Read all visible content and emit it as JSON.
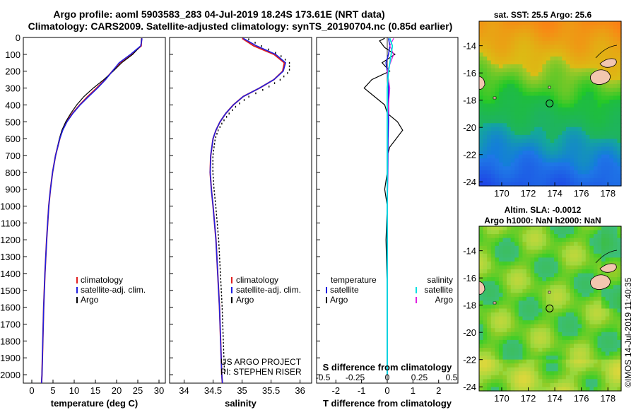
{
  "header": {
    "line1": "Argo profile: aoml 5903583_283 04-Jul-2019 18.24S 173.61E (NRT data)",
    "line2": "Climatology: CARS2009. Satellite-adjusted climatology: synTS_20190704.nc (0.85d earlier)"
  },
  "depth_ticks": [
    0,
    100,
    200,
    300,
    400,
    500,
    600,
    700,
    800,
    900,
    1000,
    1100,
    1200,
    1300,
    1400,
    1500,
    1600,
    1700,
    1800,
    1900,
    2000
  ],
  "colors": {
    "climatology": "#e02020",
    "satellite": "#2020e0",
    "argo": "#000000",
    "sat_salinity": "#00e0e0",
    "argo_salinity": "#e020e0"
  },
  "chart_data": [
    {
      "type": "line",
      "id": "temperature",
      "xlabel": "temperature (deg C)",
      "ylabel": "depth (m)",
      "xlim": [
        -2,
        31.5
      ],
      "ylim": [
        2050,
        0
      ],
      "x_ticks": [
        0,
        5,
        10,
        15,
        20,
        25,
        30
      ],
      "legend": [
        "climatology",
        "satellite-adj. clim.",
        "Argo"
      ],
      "series": [
        {
          "name": "climatology",
          "depth": [
            5,
            50,
            100,
            150,
            200,
            250,
            300,
            350,
            400,
            450,
            500,
            550,
            600,
            700,
            800,
            900,
            1000,
            1200,
            1400,
            1600,
            1800,
            2000,
            2050
          ],
          "values": [
            25.9,
            25.8,
            23.5,
            20.8,
            19.0,
            17.3,
            15.3,
            13.2,
            11.3,
            9.6,
            8.2,
            7.2,
            6.6,
            5.6,
            4.9,
            4.4,
            4.0,
            3.5,
            3.1,
            2.8,
            2.6,
            2.4,
            2.3
          ]
        },
        {
          "name": "satellite-adj. clim.",
          "depth": [
            5,
            50,
            100,
            150,
            200,
            250,
            300,
            350,
            400,
            450,
            500,
            550,
            600,
            700,
            800,
            900,
            1000,
            1200,
            1400,
            1600,
            1800,
            2000,
            2050
          ],
          "values": [
            26.0,
            25.7,
            23.3,
            20.6,
            19.0,
            17.4,
            15.5,
            13.4,
            11.4,
            9.7,
            8.3,
            7.3,
            6.6,
            5.6,
            4.9,
            4.4,
            4.0,
            3.5,
            3.1,
            2.8,
            2.6,
            2.4,
            2.3
          ]
        },
        {
          "name": "Argo",
          "depth": [
            5,
            50,
            100,
            150,
            200,
            250,
            300,
            350,
            400,
            450,
            500,
            550,
            600,
            700,
            800,
            900,
            1000,
            1200,
            1400,
            1600,
            1800,
            1990
          ],
          "values": [
            25.9,
            25.7,
            23.8,
            21.2,
            19.2,
            17.0,
            14.5,
            12.3,
            10.6,
            9.2,
            8.0,
            7.1,
            6.5,
            5.6,
            4.9,
            4.4,
            4.0,
            3.5,
            3.1,
            2.8,
            2.6,
            2.4
          ]
        }
      ]
    },
    {
      "type": "line",
      "id": "salinity",
      "xlabel": "salinity",
      "ylabel": "depth (m)",
      "xlim": [
        33.75,
        36.2
      ],
      "ylim": [
        2050,
        0
      ],
      "x_ticks": [
        34,
        34.5,
        35,
        35.5,
        36
      ],
      "legend": [
        "climatology",
        "satellite-adj. clim.",
        "Argo"
      ],
      "annotation": [
        "US ARGO PROJECT",
        "PI: STEPHEN RISER"
      ],
      "series": [
        {
          "name": "climatology",
          "depth": [
            5,
            50,
            100,
            150,
            200,
            250,
            300,
            350,
            400,
            450,
            500,
            550,
            600,
            700,
            800,
            900,
            1000,
            1200,
            1400,
            1600,
            1800,
            2000,
            2050
          ],
          "values": [
            35.0,
            35.2,
            35.55,
            35.73,
            35.7,
            35.55,
            35.3,
            35.02,
            34.85,
            34.72,
            34.62,
            34.55,
            34.5,
            34.46,
            34.45,
            34.47,
            34.5,
            34.55,
            34.58,
            34.61,
            34.63,
            34.65,
            34.66
          ]
        },
        {
          "name": "satellite-adj. clim.",
          "depth": [
            5,
            50,
            100,
            150,
            200,
            250,
            300,
            350,
            400,
            450,
            500,
            550,
            600,
            700,
            800,
            900,
            1000,
            1200,
            1400,
            1600,
            1800,
            2000,
            2050
          ],
          "values": [
            35.02,
            35.25,
            35.58,
            35.75,
            35.71,
            35.55,
            35.3,
            35.02,
            34.85,
            34.72,
            34.62,
            34.55,
            34.5,
            34.46,
            34.45,
            34.47,
            34.5,
            34.55,
            34.58,
            34.61,
            34.63,
            34.65,
            34.66
          ]
        },
        {
          "name": "Argo",
          "depth": [
            5,
            50,
            100,
            150,
            200,
            250,
            300,
            350,
            400,
            450,
            500,
            550,
            600,
            700,
            800,
            900,
            1000,
            1200,
            1400,
            1600,
            1800,
            1990
          ],
          "values": [
            35.05,
            35.3,
            35.6,
            35.78,
            35.78,
            35.62,
            35.38,
            35.08,
            34.88,
            34.74,
            34.63,
            34.55,
            34.5,
            34.46,
            34.46,
            34.48,
            34.51,
            34.56,
            34.59,
            34.62,
            34.64,
            34.66
          ]
        }
      ]
    },
    {
      "type": "line",
      "id": "difference",
      "xlabel": "T difference from climatology",
      "xlabel_top": "S difference from climatology",
      "ylabel": "depth (m)",
      "xlim": [
        -2.75,
        2.75
      ],
      "ylim": [
        2050,
        0
      ],
      "x_ticks": [
        -2,
        -1,
        0,
        1,
        2
      ],
      "s_ticks": [
        "-0.5",
        "-0.25",
        "0",
        "0.25",
        "0.5"
      ],
      "s_tick_values": [
        -0.5,
        -0.25,
        0,
        0.25,
        0.5
      ],
      "legend_temperature": [
        "temperature",
        "satellite",
        "Argo"
      ],
      "legend_salinity": [
        "salinity",
        "satellite",
        "Argo"
      ],
      "series": [
        {
          "name": "T satellite",
          "depth": [
            5,
            50,
            100,
            150,
            200,
            300,
            400,
            500,
            600,
            800,
            1000,
            1500,
            2000
          ],
          "values": [
            0.05,
            0.1,
            0.05,
            -0.05,
            0.0,
            0.05,
            0.05,
            0.05,
            0.03,
            0.02,
            0.0,
            0.0,
            0.0
          ]
        },
        {
          "name": "T Argo",
          "depth": [
            5,
            20,
            60,
            100,
            150,
            200,
            250,
            300,
            350,
            400,
            450,
            500,
            550,
            600,
            650,
            700,
            800,
            900,
            1000,
            1200,
            1500,
            2000
          ],
          "values": [
            -0.1,
            -0.3,
            -0.1,
            0.3,
            -0.2,
            0.1,
            -0.6,
            -0.9,
            -0.5,
            -0.1,
            0.0,
            0.4,
            0.6,
            0.35,
            0.1,
            0.0,
            0.0,
            -0.1,
            0.0,
            -0.05,
            0.0,
            0.0
          ]
        },
        {
          "name": "S satellite",
          "depth": [
            5,
            50,
            100,
            200,
            300,
            400,
            500,
            600,
            800,
            1000,
            1500,
            2000
          ],
          "values": [
            0.02,
            0.04,
            0.03,
            0.01,
            0.0,
            0.0,
            0.0,
            0.0,
            0.0,
            0.0,
            0.0,
            0.0
          ]
        },
        {
          "name": "S Argo",
          "depth": [
            5,
            50,
            100,
            200,
            300,
            400,
            500,
            600,
            800,
            1000,
            1500,
            2000
          ],
          "values": [
            0.05,
            0.02,
            0.05,
            0.0,
            0.02,
            0.01,
            0.0,
            0.0,
            0.0,
            0.0,
            0.0,
            0.0
          ]
        }
      ]
    },
    {
      "type": "heatmap",
      "id": "sst_map",
      "title": "sat. SST: 25.5 Argo: 25.6",
      "x_ticks": [
        170,
        172,
        174,
        176,
        178
      ],
      "y_ticks": [
        -14,
        -16,
        -18,
        -20,
        -22,
        -24
      ],
      "xlim": [
        168.3,
        179
      ],
      "ylim": [
        -24.3,
        -12.2
      ],
      "marker": [
        173.61,
        -18.24
      ]
    },
    {
      "type": "heatmap",
      "id": "sla_map",
      "title": "Altim. SLA: -0.0012",
      "subtitle": "Argo h1000: NaN h2000: NaN",
      "x_ticks": [
        170,
        172,
        174,
        176,
        178
      ],
      "y_ticks": [
        -14,
        -16,
        -18,
        -20,
        -22,
        -24
      ],
      "xlim": [
        168.3,
        179
      ],
      "ylim": [
        -24.3,
        -12.2
      ],
      "marker": [
        173.61,
        -18.24
      ]
    }
  ],
  "footer": {
    "stamp": "©IMOS 14-Jul-2019 11:40:35"
  }
}
